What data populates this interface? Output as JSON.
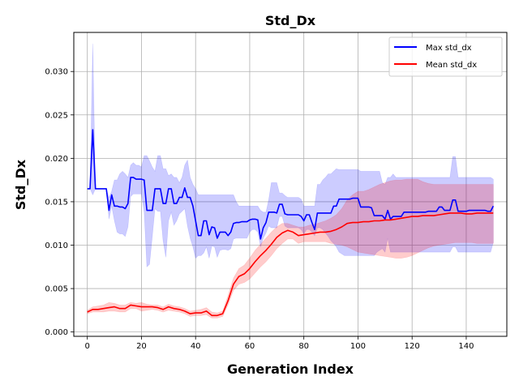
{
  "chart_data": {
    "type": "line",
    "title": "Std_Dx",
    "xlabel": "Generation Index",
    "ylabel": "Std_Dx",
    "xlim": [
      -5,
      155
    ],
    "ylim": [
      -0.0005,
      0.0345
    ],
    "xticks": [
      0,
      20,
      40,
      60,
      80,
      100,
      120,
      140
    ],
    "yticks": [
      0.0,
      0.005,
      0.01,
      0.015,
      0.02,
      0.025,
      0.03
    ],
    "ytick_labels": [
      "0.000",
      "0.005",
      "0.010",
      "0.015",
      "0.020",
      "0.025",
      "0.030"
    ],
    "grid": true,
    "legend_position": "top-right",
    "series": [
      {
        "name": "Max std_dx",
        "color": "#0000ff",
        "band_color": "#0000ff",
        "x": [
          0,
          1,
          2,
          3,
          4,
          5,
          6,
          7,
          8,
          9,
          10,
          11,
          12,
          13,
          14,
          15,
          16,
          17,
          18,
          19,
          20,
          21,
          22,
          23,
          24,
          25,
          26,
          27,
          28,
          29,
          30,
          31,
          32,
          33,
          34,
          35,
          36,
          37,
          38,
          39,
          40,
          41,
          42,
          43,
          44,
          45,
          46,
          47,
          48,
          49,
          50,
          51,
          52,
          53,
          54,
          55,
          56,
          57,
          58,
          59,
          60,
          61,
          62,
          63,
          64,
          65,
          66,
          67,
          68,
          69,
          70,
          71,
          72,
          73,
          74,
          75,
          76,
          77,
          78,
          79,
          80,
          81,
          82,
          83,
          84,
          85,
          86,
          87,
          88,
          89,
          90,
          91,
          92,
          93,
          94,
          95,
          96,
          97,
          98,
          99,
          100,
          101,
          102,
          103,
          104,
          105,
          106,
          107,
          108,
          109,
          110,
          111,
          112,
          113,
          114,
          115,
          116,
          117,
          118,
          119,
          120,
          121,
          122,
          123,
          124,
          125,
          126,
          127,
          128,
          129,
          130,
          131,
          132,
          133,
          134,
          135,
          136,
          137,
          138,
          139,
          140,
          141,
          142,
          143,
          144,
          145,
          146,
          147,
          148,
          149,
          150
        ],
        "values": [
          0.0165,
          0.0165,
          0.0233,
          0.0165,
          0.0165,
          0.0165,
          0.0165,
          0.0165,
          0.014,
          0.0158,
          0.0145,
          0.0145,
          0.0144,
          0.0144,
          0.0142,
          0.0148,
          0.0178,
          0.0178,
          0.0176,
          0.0176,
          0.0176,
          0.0175,
          0.014,
          0.014,
          0.014,
          0.0165,
          0.0165,
          0.0165,
          0.0148,
          0.0148,
          0.0165,
          0.0165,
          0.0148,
          0.0148,
          0.0155,
          0.0155,
          0.0166,
          0.0155,
          0.0155,
          0.0145,
          0.0128,
          0.0111,
          0.0111,
          0.0128,
          0.0128,
          0.0112,
          0.0121,
          0.012,
          0.0108,
          0.0115,
          0.0115,
          0.0115,
          0.0111,
          0.0115,
          0.0125,
          0.0126,
          0.0126,
          0.0127,
          0.0127,
          0.0127,
          0.0129,
          0.013,
          0.013,
          0.0129,
          0.0107,
          0.012,
          0.0126,
          0.0138,
          0.0138,
          0.0138,
          0.0137,
          0.0147,
          0.0147,
          0.0136,
          0.0135,
          0.0135,
          0.0135,
          0.0135,
          0.0135,
          0.0133,
          0.0128,
          0.0135,
          0.0135,
          0.0126,
          0.0118,
          0.0137,
          0.0137,
          0.0137,
          0.0137,
          0.0137,
          0.0137,
          0.0145,
          0.0145,
          0.0153,
          0.0153,
          0.0153,
          0.0153,
          0.0153,
          0.0154,
          0.0154,
          0.0154,
          0.0144,
          0.0144,
          0.0144,
          0.0144,
          0.0143,
          0.0134,
          0.0134,
          0.0134,
          0.0134,
          0.013,
          0.014,
          0.013,
          0.0133,
          0.0133,
          0.0133,
          0.0133,
          0.0138,
          0.0138,
          0.0138,
          0.0138,
          0.0138,
          0.0138,
          0.0138,
          0.0138,
          0.0138,
          0.0139,
          0.0139,
          0.0139,
          0.0139,
          0.0144,
          0.0144,
          0.014,
          0.014,
          0.014,
          0.0152,
          0.0152,
          0.0139,
          0.0139,
          0.0139,
          0.0139,
          0.014,
          0.014,
          0.014,
          0.014,
          0.014,
          0.014,
          0.014,
          0.0139,
          0.0139,
          0.0145
        ],
        "band_upper": [
          0.0165,
          0.0165,
          0.0332,
          0.0165,
          0.0165,
          0.0165,
          0.0165,
          0.0165,
          0.0155,
          0.0162,
          0.0175,
          0.0175,
          0.0182,
          0.0185,
          0.0182,
          0.0178,
          0.0192,
          0.0195,
          0.0192,
          0.0192,
          0.019,
          0.0203,
          0.0203,
          0.0197,
          0.019,
          0.0185,
          0.0203,
          0.0203,
          0.0188,
          0.0188,
          0.018,
          0.0182,
          0.0178,
          0.0178,
          0.0172,
          0.0178,
          0.0192,
          0.0198,
          0.0178,
          0.017,
          0.0165,
          0.0158,
          0.0158,
          0.0158,
          0.0158,
          0.0158,
          0.0158,
          0.0158,
          0.0158,
          0.0158,
          0.0158,
          0.0158,
          0.0158,
          0.0158,
          0.0158,
          0.015,
          0.0145,
          0.0145,
          0.0145,
          0.0145,
          0.0145,
          0.0145,
          0.0145,
          0.0145,
          0.014,
          0.0138,
          0.0138,
          0.0152,
          0.0172,
          0.0172,
          0.0172,
          0.016,
          0.016,
          0.0157,
          0.0155,
          0.0155,
          0.0155,
          0.0155,
          0.0155,
          0.0153,
          0.0145,
          0.0145,
          0.0145,
          0.0145,
          0.0145,
          0.017,
          0.017,
          0.0175,
          0.0178,
          0.0182,
          0.0182,
          0.0185,
          0.0188,
          0.0187,
          0.0187,
          0.0187,
          0.0187,
          0.0187,
          0.0187,
          0.0187,
          0.0187,
          0.0185,
          0.0185,
          0.0185,
          0.0185,
          0.0185,
          0.0185,
          0.0185,
          0.0185,
          0.0172,
          0.017,
          0.0178,
          0.0178,
          0.0182,
          0.0178,
          0.0178,
          0.0178,
          0.0178,
          0.0178,
          0.0178,
          0.0178,
          0.0178,
          0.0178,
          0.0178,
          0.0178,
          0.0178,
          0.0178,
          0.0178,
          0.0178,
          0.0178,
          0.0178,
          0.0178,
          0.0178,
          0.0178,
          0.0178,
          0.0202,
          0.0202,
          0.0178,
          0.0178,
          0.0178,
          0.0178,
          0.0178,
          0.0178,
          0.0178,
          0.0178,
          0.0178,
          0.0178,
          0.0178,
          0.0178,
          0.0178,
          0.0176
        ],
        "band_lower": [
          0.0165,
          0.0165,
          0.0158,
          0.0165,
          0.0165,
          0.0165,
          0.0165,
          0.0165,
          0.013,
          0.0145,
          0.0128,
          0.0115,
          0.0113,
          0.0113,
          0.011,
          0.0121,
          0.0156,
          0.0159,
          0.0159,
          0.0159,
          0.0159,
          0.0138,
          0.0075,
          0.0078,
          0.011,
          0.0142,
          0.0139,
          0.0139,
          0.0105,
          0.0086,
          0.0128,
          0.0138,
          0.0123,
          0.0128,
          0.0136,
          0.0139,
          0.0142,
          0.0122,
          0.0108,
          0.0098,
          0.0085,
          0.0088,
          0.0088,
          0.0091,
          0.0098,
          0.0085,
          0.0099,
          0.0098,
          0.0086,
          0.0094,
          0.0095,
          0.0095,
          0.0094,
          0.0096,
          0.0107,
          0.0108,
          0.0108,
          0.0108,
          0.0108,
          0.0108,
          0.0115,
          0.0118,
          0.0118,
          0.0115,
          0.0098,
          0.0108,
          0.0114,
          0.0122,
          0.012,
          0.012,
          0.012,
          0.0133,
          0.0133,
          0.0122,
          0.012,
          0.012,
          0.012,
          0.012,
          0.012,
          0.0118,
          0.0113,
          0.0118,
          0.0118,
          0.0115,
          0.0111,
          0.012,
          0.012,
          0.0118,
          0.0114,
          0.011,
          0.0105,
          0.0102,
          0.0098,
          0.0092,
          0.009,
          0.0088,
          0.0088,
          0.0088,
          0.0088,
          0.0088,
          0.0088,
          0.0088,
          0.0088,
          0.0088,
          0.0088,
          0.0088,
          0.0088,
          0.0092,
          0.0094,
          0.0096,
          0.0092,
          0.0108,
          0.0092,
          0.0092,
          0.0092,
          0.0092,
          0.0092,
          0.0092,
          0.0092,
          0.0092,
          0.0092,
          0.0092,
          0.0092,
          0.0092,
          0.0092,
          0.0092,
          0.0092,
          0.0092,
          0.0092,
          0.0092,
          0.0092,
          0.0092,
          0.0092,
          0.0092,
          0.0092,
          0.0098,
          0.0098,
          0.0092,
          0.0092,
          0.0092,
          0.0092,
          0.0092,
          0.0092,
          0.0092,
          0.0092,
          0.0092,
          0.0092,
          0.0092,
          0.0092,
          0.0092,
          0.0103
        ]
      },
      {
        "name": "Mean std_dx",
        "color": "#ff0000",
        "band_color": "#ff0000",
        "x": [
          0,
          2,
          4,
          6,
          8,
          10,
          12,
          14,
          16,
          18,
          20,
          22,
          24,
          26,
          28,
          30,
          32,
          34,
          36,
          38,
          40,
          42,
          44,
          46,
          48,
          50,
          52,
          54,
          56,
          58,
          60,
          62,
          64,
          66,
          68,
          70,
          72,
          74,
          76,
          78,
          80,
          82,
          84,
          86,
          88,
          90,
          92,
          94,
          96,
          98,
          100,
          102,
          104,
          106,
          108,
          110,
          112,
          114,
          116,
          118,
          120,
          122,
          124,
          126,
          128,
          130,
          132,
          134,
          136,
          138,
          140,
          142,
          144,
          146,
          148,
          150
        ],
        "values": [
          0.0023,
          0.0026,
          0.0026,
          0.0027,
          0.0028,
          0.0029,
          0.0027,
          0.0027,
          0.0031,
          0.003,
          0.0029,
          0.0029,
          0.0029,
          0.0028,
          0.0026,
          0.0029,
          0.0027,
          0.0026,
          0.0024,
          0.0021,
          0.0022,
          0.0022,
          0.0024,
          0.0019,
          0.0019,
          0.0021,
          0.0036,
          0.0055,
          0.0064,
          0.0067,
          0.0073,
          0.0081,
          0.0088,
          0.0094,
          0.0101,
          0.0109,
          0.0114,
          0.0117,
          0.0115,
          0.0111,
          0.0112,
          0.0113,
          0.0114,
          0.0115,
          0.0115,
          0.0116,
          0.0118,
          0.0121,
          0.0125,
          0.0126,
          0.0126,
          0.0127,
          0.0127,
          0.0128,
          0.0128,
          0.0129,
          0.0129,
          0.013,
          0.0131,
          0.0132,
          0.0133,
          0.0133,
          0.0134,
          0.0134,
          0.0134,
          0.0135,
          0.0136,
          0.0137,
          0.0137,
          0.0137,
          0.0136,
          0.0136,
          0.0137,
          0.0137,
          0.0137,
          0.0137
        ],
        "band_upper": [
          0.0025,
          0.0029,
          0.003,
          0.0031,
          0.0034,
          0.0033,
          0.0031,
          0.0031,
          0.0034,
          0.0033,
          0.0034,
          0.0032,
          0.0031,
          0.0031,
          0.0029,
          0.0032,
          0.003,
          0.0029,
          0.0027,
          0.0024,
          0.0025,
          0.0026,
          0.0028,
          0.0023,
          0.0022,
          0.0024,
          0.0042,
          0.0062,
          0.0073,
          0.0077,
          0.0085,
          0.0094,
          0.0101,
          0.0108,
          0.0115,
          0.0121,
          0.0125,
          0.0125,
          0.0123,
          0.0121,
          0.0121,
          0.0123,
          0.0124,
          0.0126,
          0.0128,
          0.0131,
          0.0135,
          0.0142,
          0.0152,
          0.0158,
          0.0162,
          0.0162,
          0.0164,
          0.0167,
          0.017,
          0.0172,
          0.0174,
          0.0175,
          0.0175,
          0.0176,
          0.0176,
          0.0176,
          0.0173,
          0.0171,
          0.017,
          0.017,
          0.017,
          0.017,
          0.017,
          0.017,
          0.017,
          0.017,
          0.017,
          0.017,
          0.017,
          0.017
        ],
        "band_lower": [
          0.0021,
          0.0023,
          0.0023,
          0.0023,
          0.0024,
          0.0024,
          0.0023,
          0.0023,
          0.0027,
          0.0027,
          0.0024,
          0.0025,
          0.0026,
          0.0025,
          0.0023,
          0.0025,
          0.0024,
          0.0023,
          0.0021,
          0.0018,
          0.0019,
          0.0019,
          0.002,
          0.0016,
          0.0016,
          0.0018,
          0.0031,
          0.0048,
          0.0055,
          0.0057,
          0.0061,
          0.0068,
          0.0075,
          0.0081,
          0.0088,
          0.0096,
          0.0102,
          0.0107,
          0.0107,
          0.0102,
          0.0104,
          0.0104,
          0.0104,
          0.0104,
          0.0104,
          0.0102,
          0.0101,
          0.01,
          0.0098,
          0.0095,
          0.0092,
          0.0091,
          0.009,
          0.0089,
          0.0088,
          0.0087,
          0.0086,
          0.0085,
          0.0085,
          0.0086,
          0.0088,
          0.0091,
          0.0094,
          0.0097,
          0.0099,
          0.01,
          0.0101,
          0.0102,
          0.0103,
          0.0103,
          0.0103,
          0.0103,
          0.0102,
          0.0102,
          0.0102,
          0.0102
        ]
      }
    ]
  }
}
